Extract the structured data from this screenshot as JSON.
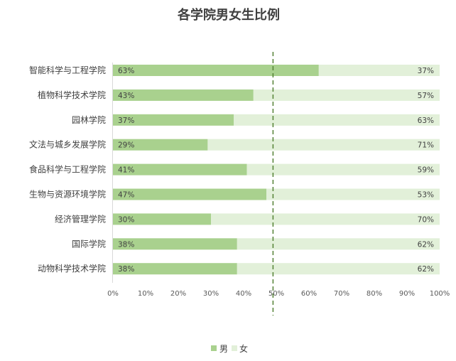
{
  "chart_data": {
    "type": "bar",
    "orientation": "horizontal",
    "stacked": "percent",
    "title": "各学院男女生比例",
    "categories": [
      "智能科学与工程学院",
      "植物科学技术学院",
      "园林学院",
      "文法与城乡发展学院",
      "食品科学与工程学院",
      "生物与资源环境学院",
      "经济管理学院",
      "国际学院",
      "动物科学技术学院"
    ],
    "series": [
      {
        "name": "男",
        "color": "#a9d18e",
        "values": [
          63,
          43,
          37,
          29,
          41,
          47,
          30,
          38,
          38
        ]
      },
      {
        "name": "女",
        "color": "#e2f0d9",
        "values": [
          37,
          57,
          63,
          71,
          59,
          53,
          70,
          62,
          62
        ]
      }
    ],
    "value_labels_male": [
      "63%",
      "43%",
      "37%",
      "29%",
      "41%",
      "47%",
      "30%",
      "38%",
      "38%"
    ],
    "value_labels_female": [
      "37%",
      "57%",
      "63%",
      "71%",
      "59%",
      "53%",
      "70%",
      "62%",
      "62%"
    ],
    "xlim": [
      0,
      100
    ],
    "xticks": [
      0,
      10,
      20,
      30,
      40,
      50,
      60,
      70,
      80,
      90,
      100
    ],
    "xtick_labels": [
      "0%",
      "10%",
      "20%",
      "30%",
      "40%",
      "50%",
      "60%",
      "70%",
      "80%",
      "90%",
      "100%"
    ],
    "reference_line": {
      "value": 49,
      "style": "dashed",
      "color": "#548235"
    },
    "grid": false,
    "legend": {
      "position": "bottom",
      "entries": [
        "男",
        "女"
      ]
    }
  }
}
